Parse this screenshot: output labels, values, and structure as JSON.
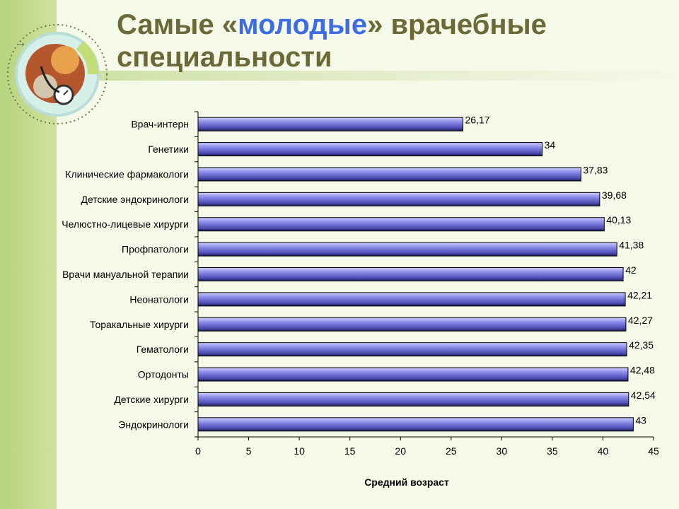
{
  "slide": {
    "title_before": "Самые «",
    "title_highlight": "молодые",
    "title_after": "» врачебные специальности"
  },
  "chart_data": {
    "type": "bar",
    "orientation": "horizontal",
    "categories": [
      "Врач-интерн",
      "Генетики",
      "Клинические фармакологи",
      "Детские эндокринологи",
      "Челюстно-лицевые хирурги",
      "Профпатологи",
      "Врачи мануальной терапии",
      "Неонатологи",
      "Торакальные хирурги",
      "Гематологи",
      "Ортодонты",
      "Детские хирурги",
      "Эндокринологи"
    ],
    "values": [
      26.17,
      34,
      37.83,
      39.68,
      40.13,
      41.38,
      42,
      42.21,
      42.27,
      42.35,
      42.48,
      42.54,
      43
    ],
    "value_labels": [
      "26,17",
      "34",
      "37,83",
      "39,68",
      "40,13",
      "41,38",
      "42",
      "42,21",
      "42,27",
      "42,35",
      "42,48",
      "42,54",
      "43"
    ],
    "xticks": [
      "0",
      "5",
      "10",
      "15",
      "20",
      "25",
      "30",
      "35",
      "40",
      "45"
    ],
    "xlim": [
      0,
      45
    ],
    "xlabel": "Средний возраст",
    "ylabel": "",
    "grid": false,
    "legend": "none",
    "bar_color": "#8080e0"
  }
}
